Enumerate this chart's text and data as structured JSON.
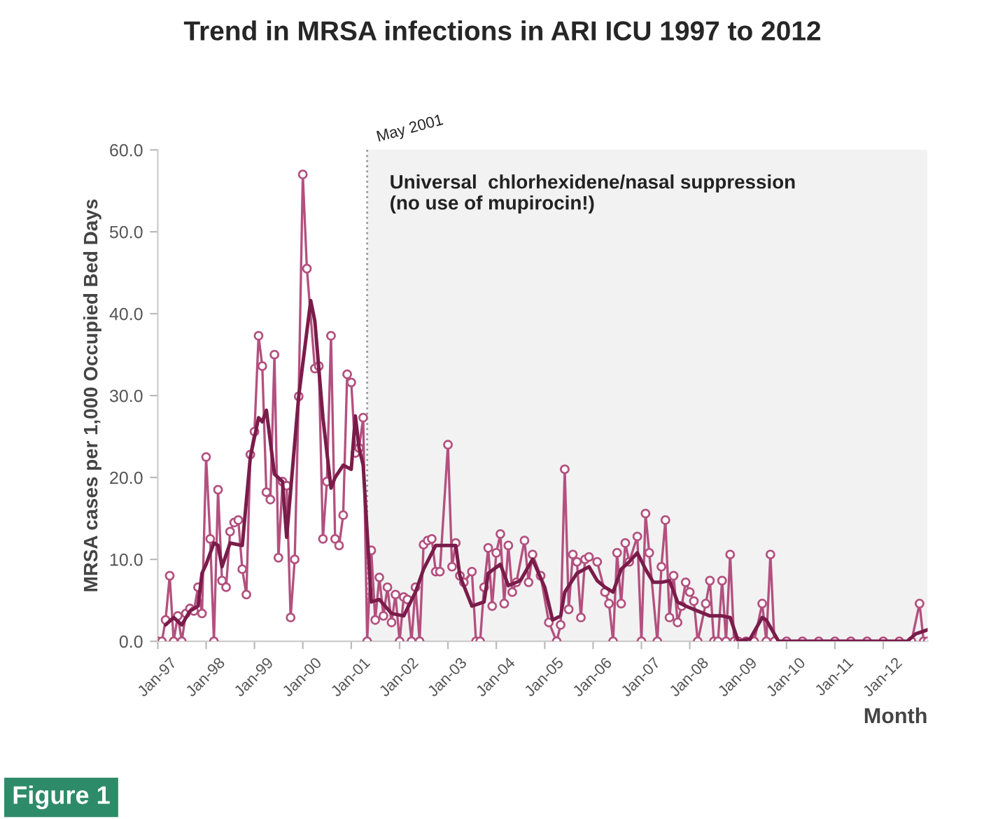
{
  "chart_data": {
    "type": "line",
    "title": "Trend in MRSA infections in ARI ICU 1997 to 2012",
    "xlabel": "Month",
    "ylabel": "MRSA cases per 1,000 Occupied Bed Days",
    "annotations": [
      "Figure 1"
    ],
    "series": [
      {
        "color": "#b3507f",
        "marker": "circle",
        "x": [
          "1997-01",
          "1997-02",
          "1997-03",
          "1997-04",
          "1997-05",
          "1997-06",
          "1997-07",
          "1997-08",
          "1997-09",
          "1997-10",
          "1997-11",
          "1997-12",
          "1998-01",
          "1998-02",
          "1998-03",
          "1998-04",
          "1998-05",
          "1998-06",
          "1998-07",
          "1998-08",
          "1998-09",
          "1998-10",
          "1998-11",
          "1998-12",
          "1999-01",
          "1999-02",
          "1999-03",
          "1999-04",
          "1999-05",
          "1999-06",
          "1999-07",
          "1999-08",
          "1999-09",
          "1999-10",
          "1999-11",
          "1999-12",
          "2000-01",
          "2000-02",
          "2000-04",
          "2000-05",
          "2000-06",
          "2000-07",
          "2000-08",
          "2000-09",
          "2000-10",
          "2000-11",
          "2000-12",
          "2001-01",
          "2001-02",
          "2001-03",
          "2001-04",
          "2001-05",
          "2001-06",
          "2001-07",
          "2001-08",
          "2001-09",
          "2001-10",
          "2001-11",
          "2001-12",
          "2002-01",
          "2002-02",
          "2002-03",
          "2002-04",
          "2002-05",
          "2002-06",
          "2002-07",
          "2002-08",
          "2002-09",
          "2002-10",
          "2002-11",
          "2003-01",
          "2003-02",
          "2003-03",
          "2003-04",
          "2003-05",
          "2003-07",
          "2003-08",
          "2003-09",
          "2003-10",
          "2003-11",
          "2003-12",
          "2004-01",
          "2004-02",
          "2004-03",
          "2004-04",
          "2004-05",
          "2004-06",
          "2004-08",
          "2004-09",
          "2004-10",
          "2004-12",
          "2005-02",
          "2005-04",
          "2005-05",
          "2005-06",
          "2005-07",
          "2005-08",
          "2005-09",
          "2005-10",
          "2005-11",
          "2005-12",
          "2006-02",
          "2006-04",
          "2006-05",
          "2006-06",
          "2006-07",
          "2006-08",
          "2006-09",
          "2006-10",
          "2006-12",
          "2007-01",
          "2007-02",
          "2007-03",
          "2007-05",
          "2007-06",
          "2007-07",
          "2007-08",
          "2007-09",
          "2007-10",
          "2007-11",
          "2007-12",
          "2008-01",
          "2008-02",
          "2008-03",
          "2008-05",
          "2008-06",
          "2008-07",
          "2008-08",
          "2008-09",
          "2008-10",
          "2008-11",
          "2008-12",
          "2009-01",
          "2009-03",
          "2009-05",
          "2009-07",
          "2009-08",
          "2009-09",
          "2009-10",
          "2010-01",
          "2010-05",
          "2010-09",
          "2011-01",
          "2011-05",
          "2011-09",
          "2012-01",
          "2012-05",
          "2012-08",
          "2012-10",
          "2012-11",
          "2012-12"
        ],
        "values": [
          0,
          0,
          2.6,
          8.0,
          0,
          3.1,
          0,
          3.4,
          4.0,
          3.7,
          6.6,
          3.4,
          22.5,
          12.5,
          0,
          18.5,
          7.4,
          6.6,
          13.4,
          14.5,
          14.8,
          8.8,
          5.7,
          22.8,
          25.6,
          37.3,
          33.6,
          18.2,
          17.3,
          35.0,
          10.2,
          19.5,
          19.0,
          2.9,
          10.0,
          29.9,
          57.0,
          45.5,
          33.3,
          33.6,
          12.5,
          19.5,
          37.3,
          12.5,
          11.7,
          15.4,
          32.6,
          31.6,
          23.0,
          23.6,
          27.3,
          0,
          11.1,
          2.6,
          7.8,
          3.1,
          6.6,
          2.3,
          5.7,
          0,
          5.4,
          5.1,
          0,
          6.6,
          0,
          11.8,
          12.3,
          12.5,
          8.5,
          8.5,
          24.0,
          9.1,
          12.0,
          8.0,
          7.2,
          8.5,
          0,
          0,
          6.6,
          11.4,
          4.3,
          10.8,
          13.1,
          4.6,
          11.7,
          6.0,
          7.2,
          12.3,
          7.2,
          10.6,
          8.0,
          2.3,
          0,
          2.0,
          21.0,
          3.9,
          10.6,
          9.7,
          2.9,
          10.0,
          10.3,
          9.7,
          6.0,
          4.6,
          0,
          10.8,
          4.6,
          12.0,
          9.7,
          12.8,
          0,
          15.6,
          10.8,
          0,
          9.1,
          14.8,
          2.9,
          8.0,
          2.3,
          4.3,
          7.2,
          6.0,
          4.9,
          0,
          4.6,
          7.4,
          0,
          0,
          7.4,
          0,
          10.6,
          0,
          0,
          0,
          0,
          4.6,
          0,
          10.6,
          0,
          0,
          0,
          0,
          0,
          0,
          0,
          0,
          0,
          0,
          4.6,
          0,
          0
        ]
      },
      {
        "color": "#7a1c4a",
        "marker": "none",
        "x": [
          "1997-03",
          "1997-05",
          "1997-07",
          "1997-09",
          "1997-11",
          "1997-12",
          "1998-01",
          "1998-03",
          "1998-04",
          "1998-05",
          "1998-07",
          "1998-10",
          "1998-12",
          "1999-02",
          "1999-03",
          "1999-04",
          "1999-06",
          "1999-08",
          "1999-09",
          "1999-12",
          "2000-03",
          "2000-04",
          "2000-05",
          "2000-06",
          "2000-08",
          "2000-09",
          "2000-11",
          "2001-01",
          "2001-02",
          "2001-03",
          "2001-04",
          "2001-06",
          "2001-08",
          "2001-11",
          "2002-02",
          "2002-05",
          "2002-07",
          "2002-10",
          "2003-01",
          "2003-03",
          "2003-04",
          "2003-07",
          "2003-10",
          "2003-11",
          "2004-02",
          "2004-04",
          "2004-07",
          "2004-10",
          "2005-01",
          "2005-03",
          "2005-05",
          "2005-06",
          "2005-09",
          "2005-12",
          "2006-02",
          "2006-04",
          "2006-06",
          "2006-08",
          "2006-10",
          "2006-12",
          "2007-02",
          "2007-04",
          "2007-06",
          "2007-08",
          "2007-10",
          "2007-12",
          "2008-03",
          "2008-06",
          "2008-09",
          "2008-11",
          "2009-01",
          "2009-04",
          "2009-07",
          "2009-08",
          "2009-11",
          "2012-07",
          "2012-09",
          "2012-12"
        ],
        "values": [
          2.0,
          2.9,
          2.0,
          3.7,
          4.3,
          8.3,
          9.4,
          12.0,
          11.7,
          9.1,
          12.0,
          11.7,
          22.5,
          27.3,
          26.8,
          28.2,
          20.4,
          19.5,
          12.7,
          29.9,
          41.6,
          39.1,
          33.3,
          27.3,
          18.7,
          20.0,
          21.5,
          21.0,
          27.5,
          23.6,
          21.5,
          4.8,
          5.1,
          3.4,
          3.1,
          6.0,
          8.8,
          11.7,
          11.7,
          11.7,
          8.0,
          4.3,
          4.8,
          8.3,
          9.4,
          6.8,
          7.4,
          10.0,
          6.6,
          2.6,
          3.1,
          6.0,
          8.3,
          9.1,
          7.4,
          6.6,
          6.0,
          8.8,
          9.7,
          10.8,
          8.8,
          7.2,
          7.2,
          7.4,
          4.8,
          4.3,
          3.7,
          3.1,
          3.1,
          2.9,
          0,
          0.3,
          2.9,
          2.6,
          0,
          0,
          0.9,
          1.4
        ]
      }
    ],
    "xlim": [
      "1997-01",
      "2012-12"
    ],
    "xticks": [
      {
        "value": "1997-01",
        "label": "Jan-97"
      },
      {
        "value": "1998-01",
        "label": "Jan-98"
      },
      {
        "value": "1999-01",
        "label": "Jan-99"
      },
      {
        "value": "2000-01",
        "label": "Jan-00"
      },
      {
        "value": "2001-01",
        "label": "Jan-01"
      },
      {
        "value": "2002-01",
        "label": "Jan-02"
      },
      {
        "value": "2003-01",
        "label": "Jan-03"
      },
      {
        "value": "2004-01",
        "label": "Jan-04"
      },
      {
        "value": "2005-01",
        "label": "Jan-05"
      },
      {
        "value": "2006-01",
        "label": "Jan-06"
      },
      {
        "value": "2007-01",
        "label": "Jan-07"
      },
      {
        "value": "2008-01",
        "label": "Jan-08"
      },
      {
        "value": "2009-01",
        "label": "Jan-09"
      },
      {
        "value": "2010-01",
        "label": "Jan-10"
      },
      {
        "value": "2011-01",
        "label": "Jan-11"
      },
      {
        "value": "2012-01",
        "label": "Jan-12"
      }
    ],
    "ylim": [
      0,
      60
    ],
    "yticks": [
      {
        "value": 0,
        "label": "0.0"
      },
      {
        "value": 10,
        "label": "10.0"
      },
      {
        "value": 20,
        "label": "20.0"
      },
      {
        "value": 30,
        "label": "30.0"
      },
      {
        "value": 40,
        "label": "40.0"
      },
      {
        "value": 50,
        "label": "50.0"
      },
      {
        "value": 60,
        "label": "60.0"
      }
    ],
    "ref_lines": [
      {
        "axis": "x",
        "value": "2001-05",
        "label": "May 2001",
        "line_style": "dotted",
        "color": "#999999"
      }
    ],
    "bands": [
      {
        "axis": "x",
        "from": "2001-05",
        "to": "2012-12",
        "label": "Universal  chlorhexidene/nasal suppression\n(no use of mupirocin!)",
        "color": "#f2f2f2"
      }
    ],
    "grid": false,
    "legend": false
  }
}
